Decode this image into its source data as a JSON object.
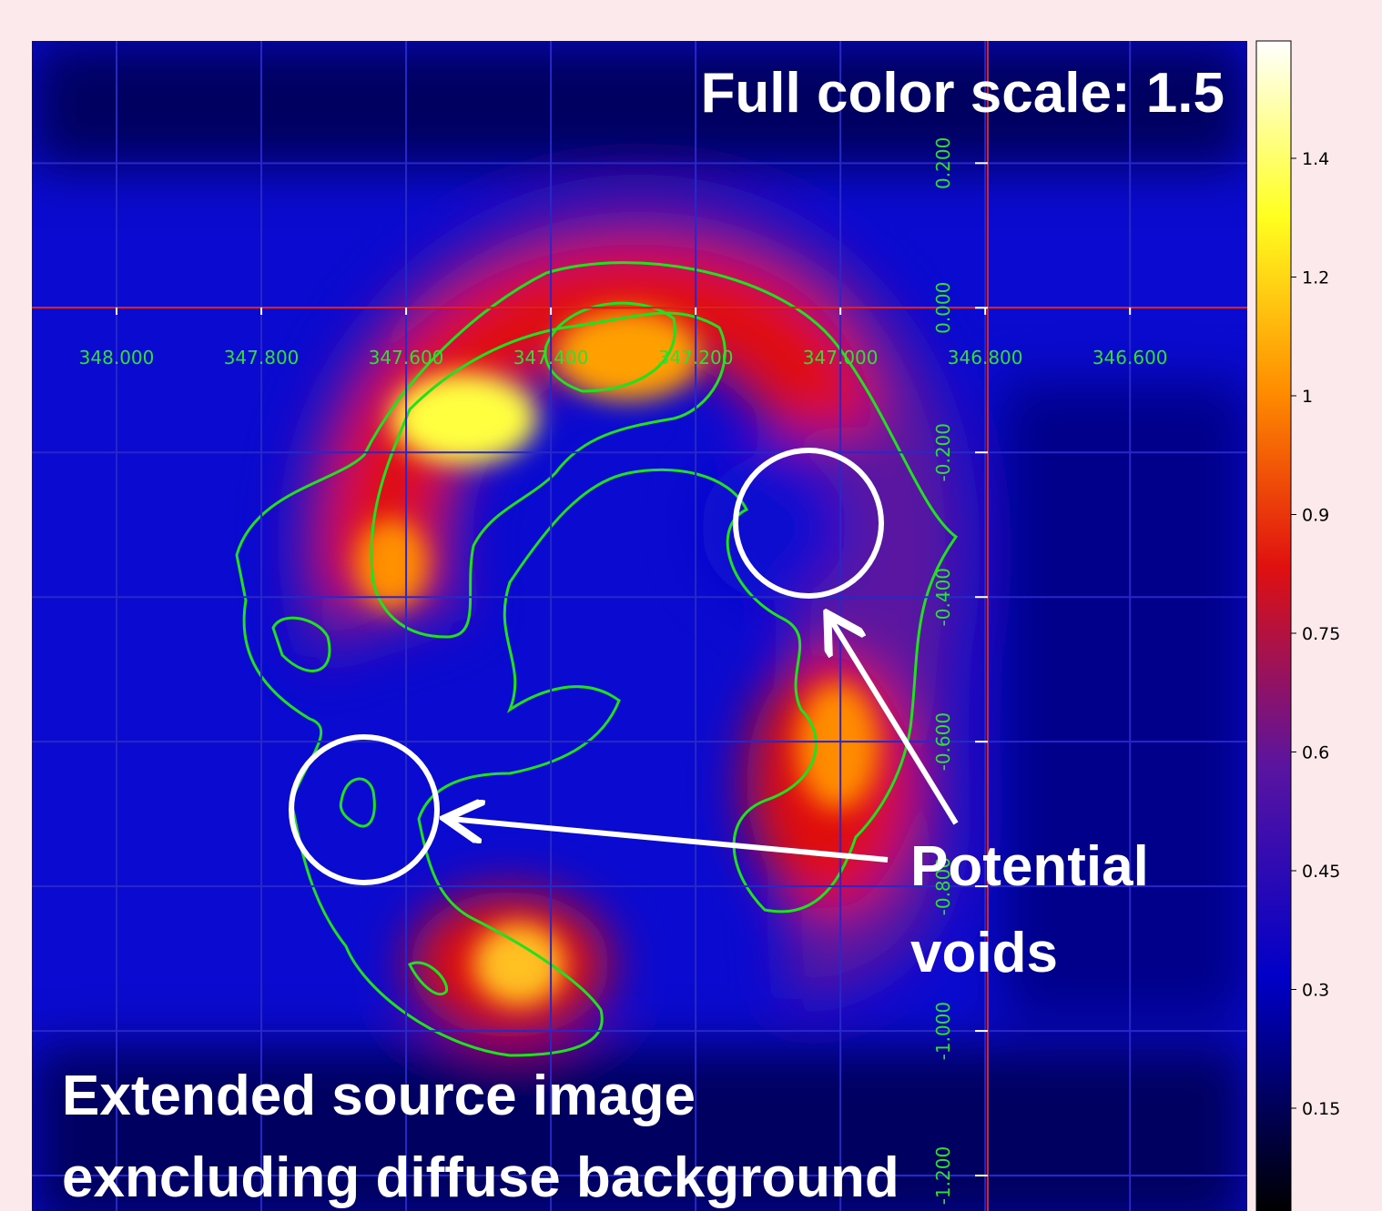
{
  "chart_data": {
    "type": "image",
    "annotations": {
      "scale_note": "Full color scale: 1.5",
      "void_label": [
        "Potential",
        "voids"
      ],
      "caption": [
        "Extended source image",
        "exncluding diffuse background"
      ]
    },
    "xlim": [
      348.117,
      346.438
    ],
    "ylim": [
      0.369,
      -1.249
    ],
    "xticks": [
      {
        "value": 348.0,
        "label": "348.000"
      },
      {
        "value": 347.8,
        "label": "347.800"
      },
      {
        "value": 347.6,
        "label": "347.600"
      },
      {
        "value": 347.4,
        "label": "347.400"
      },
      {
        "value": 347.2,
        "label": "347.200"
      },
      {
        "value": 347.0,
        "label": "347.000"
      },
      {
        "value": 346.8,
        "label": "346.800"
      },
      {
        "value": 346.6,
        "label": "346.600"
      }
    ],
    "yticks": [
      {
        "value": 0.2,
        "label": "0.200"
      },
      {
        "value": 0,
        "label": "0.000"
      },
      {
        "value": -0.2,
        "label": "-0.200"
      },
      {
        "value": -0.4,
        "label": "-0.400"
      },
      {
        "value": -0.6,
        "label": "-0.600"
      },
      {
        "value": -0.8,
        "label": "-0.800"
      },
      {
        "value": -1.0,
        "label": "-1.000"
      },
      {
        "value": -1.2,
        "label": "-1.200"
      }
    ],
    "colorbar_ticks": [
      1.4,
      1.2,
      1,
      0.9,
      0.75,
      0.6,
      0.45,
      0.3,
      0.15
    ],
    "grid": true
  }
}
